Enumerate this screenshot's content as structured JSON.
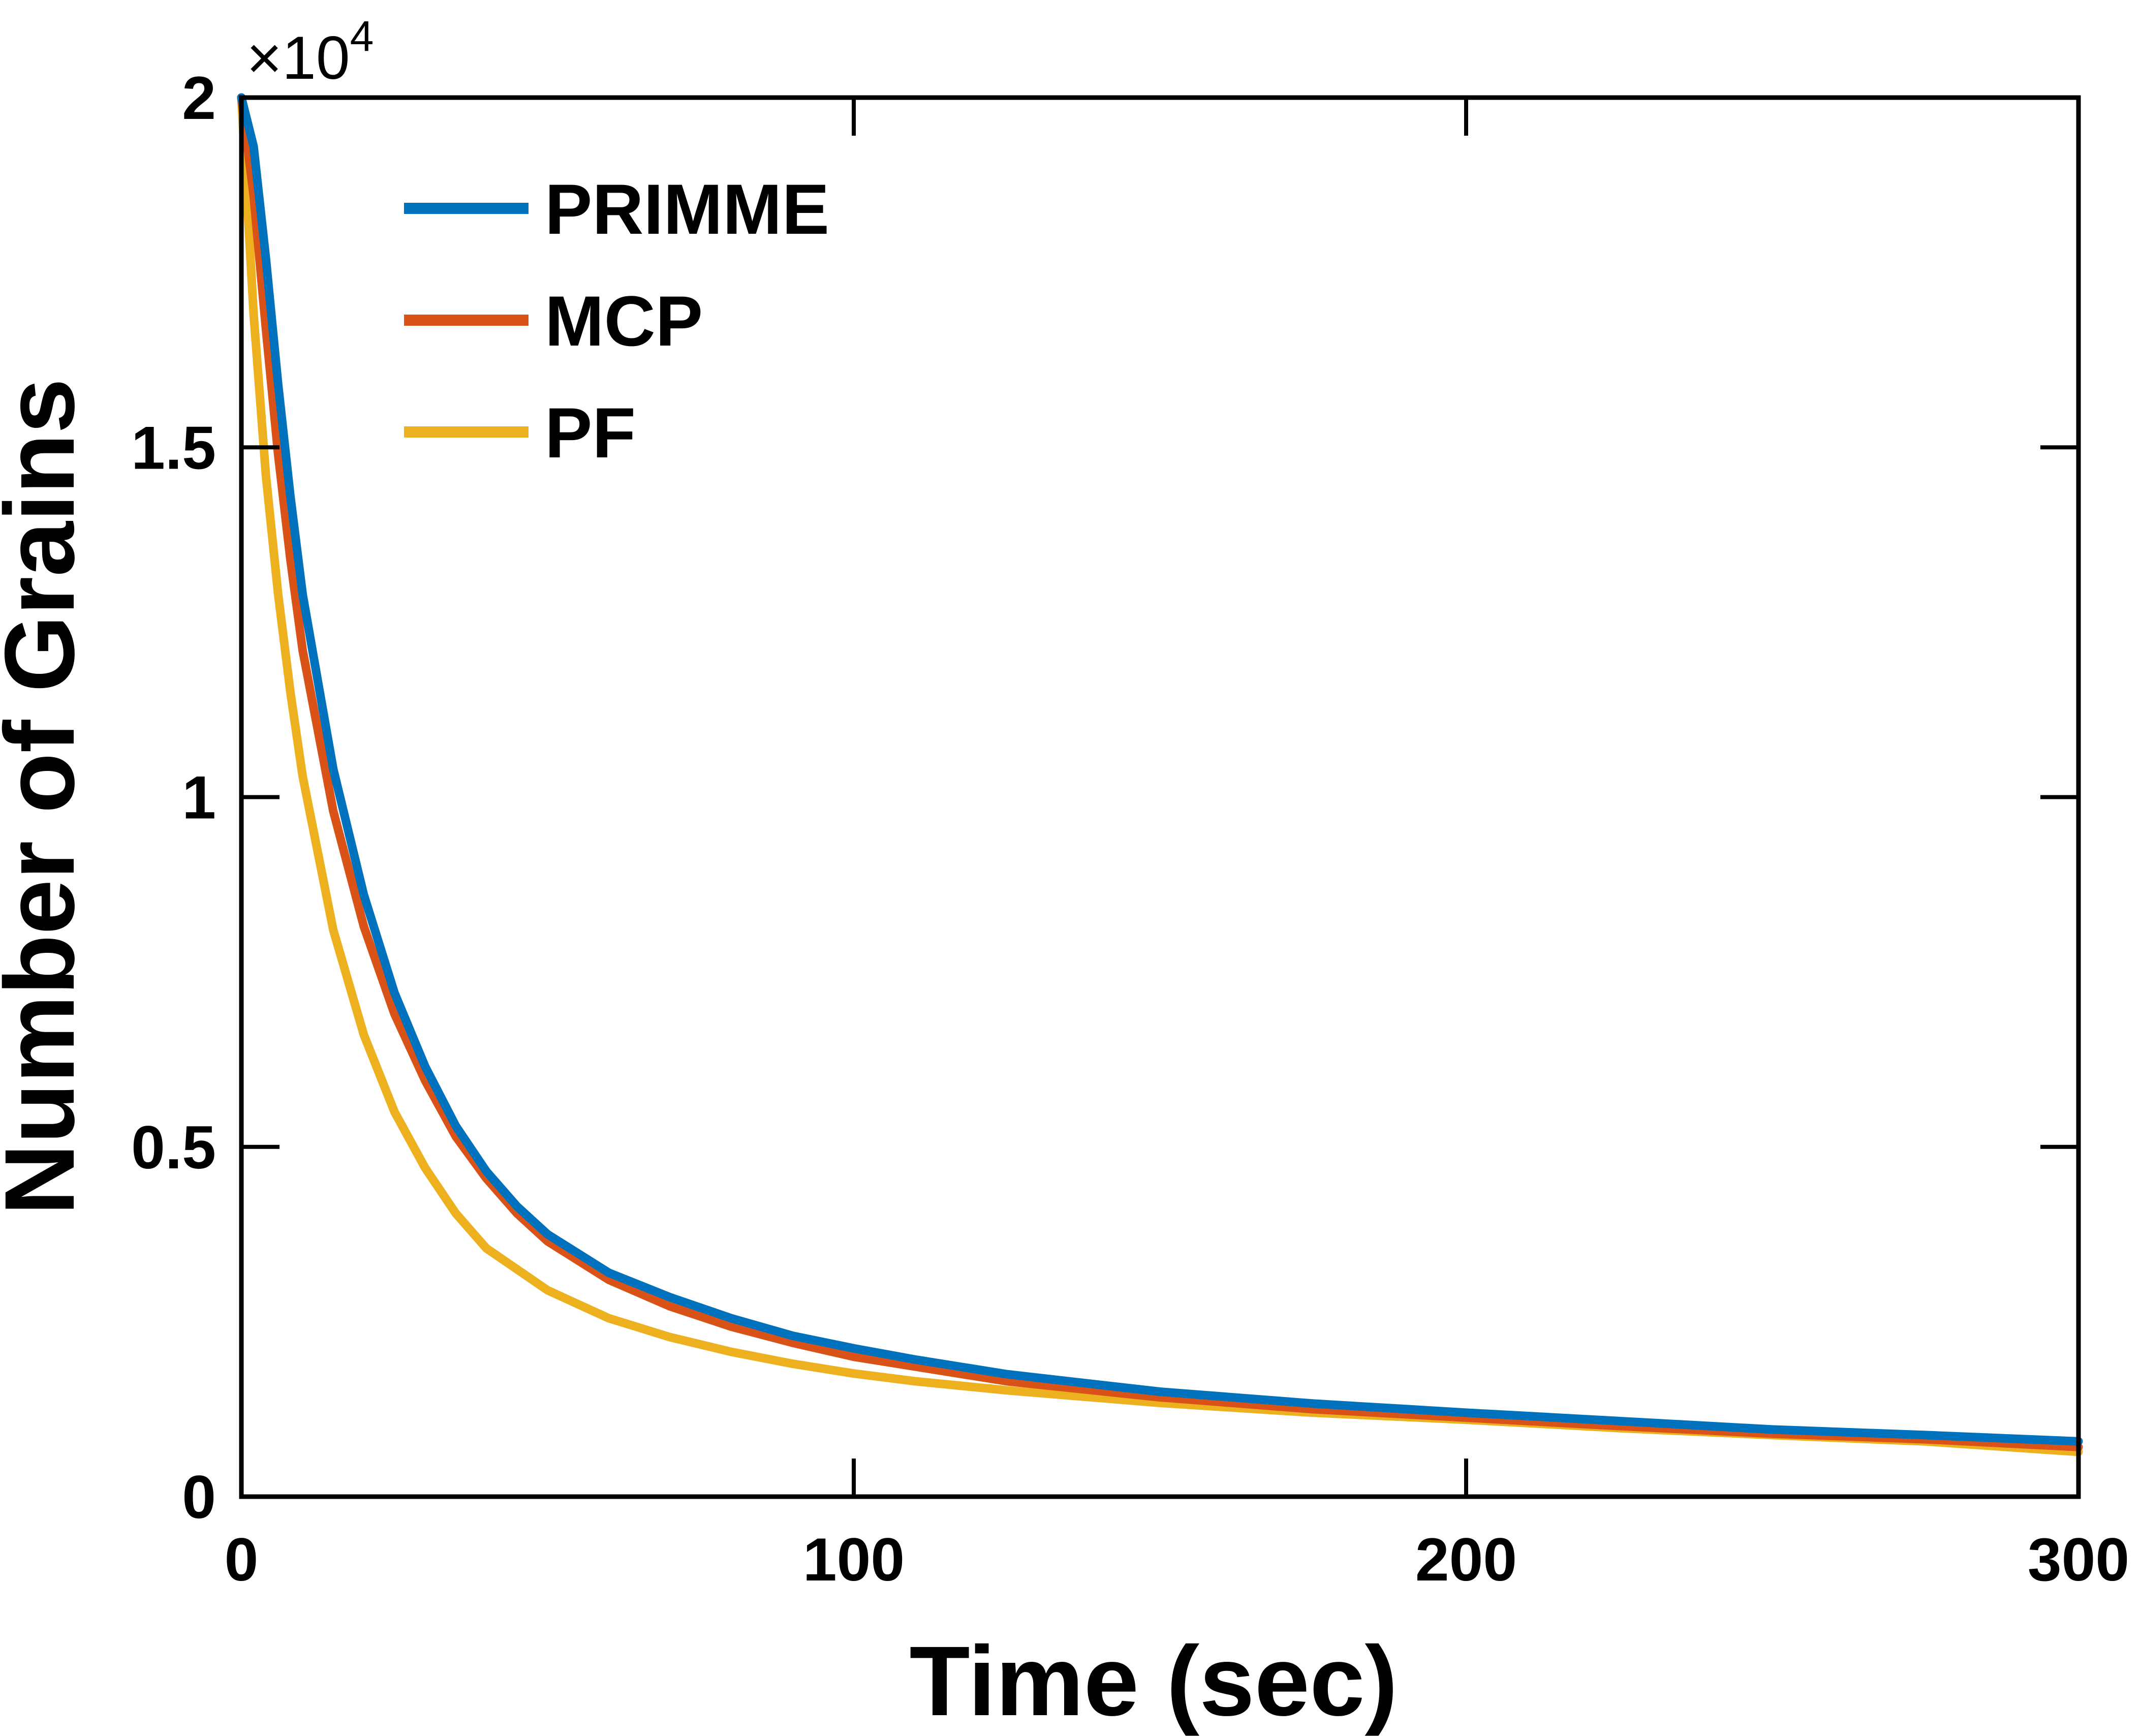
{
  "chart_data": {
    "type": "line",
    "xlabel": "Time (sec)",
    "ylabel": "Number of Grains",
    "xlim": [
      0,
      300
    ],
    "ylim": [
      0,
      20000
    ],
    "x_ticks": [
      0,
      100,
      200,
      300
    ],
    "x_tick_labels": [
      "0",
      "100",
      "200",
      "300"
    ],
    "y_ticks": [
      0,
      5000,
      10000,
      15000,
      20000
    ],
    "y_tick_labels": [
      "0",
      "0.5",
      "1",
      "1.5",
      "2"
    ],
    "y_exponent_label": {
      "base": "×10",
      "power": "4"
    },
    "grid": false,
    "legend_position": "top-left",
    "series": [
      {
        "name": "PRIMME",
        "color": "#0072BD",
        "x": [
          0,
          2,
          4,
          6,
          8,
          10,
          15,
          20,
          25,
          30,
          35,
          40,
          45,
          50,
          60,
          70,
          80,
          90,
          100,
          110,
          125,
          150,
          175,
          200,
          225,
          250,
          275,
          300
        ],
        "y": [
          20000,
          19300,
          17700,
          15900,
          14300,
          12900,
          10400,
          8600,
          7200,
          6150,
          5300,
          4650,
          4150,
          3750,
          3200,
          2850,
          2550,
          2300,
          2120,
          1960,
          1750,
          1500,
          1330,
          1200,
          1080,
          960,
          880,
          790
        ]
      },
      {
        "name": "MCP",
        "color": "#D95319",
        "x": [
          0,
          2,
          4,
          6,
          8,
          10,
          15,
          20,
          25,
          30,
          35,
          40,
          45,
          50,
          60,
          70,
          80,
          90,
          100,
          110,
          125,
          150,
          175,
          200,
          225,
          250,
          275,
          300
        ],
        "y": [
          20000,
          18600,
          16700,
          14900,
          13400,
          12100,
          9800,
          8150,
          6900,
          5950,
          5150,
          4550,
          4050,
          3650,
          3100,
          2720,
          2430,
          2200,
          2000,
          1860,
          1650,
          1420,
          1250,
          1130,
          1010,
          900,
          820,
          710
        ]
      },
      {
        "name": "PF",
        "color": "#EDB120",
        "x": [
          0,
          2,
          4,
          6,
          8,
          10,
          15,
          20,
          25,
          30,
          35,
          40,
          45,
          50,
          60,
          70,
          80,
          90,
          100,
          110,
          125,
          150,
          175,
          200,
          225,
          250,
          275,
          300
        ],
        "y": [
          20000,
          16900,
          14600,
          12900,
          11500,
          10300,
          8100,
          6600,
          5500,
          4700,
          4050,
          3550,
          3250,
          2950,
          2550,
          2280,
          2070,
          1900,
          1760,
          1650,
          1520,
          1340,
          1200,
          1100,
          980,
          880,
          790,
          640
        ]
      }
    ]
  }
}
